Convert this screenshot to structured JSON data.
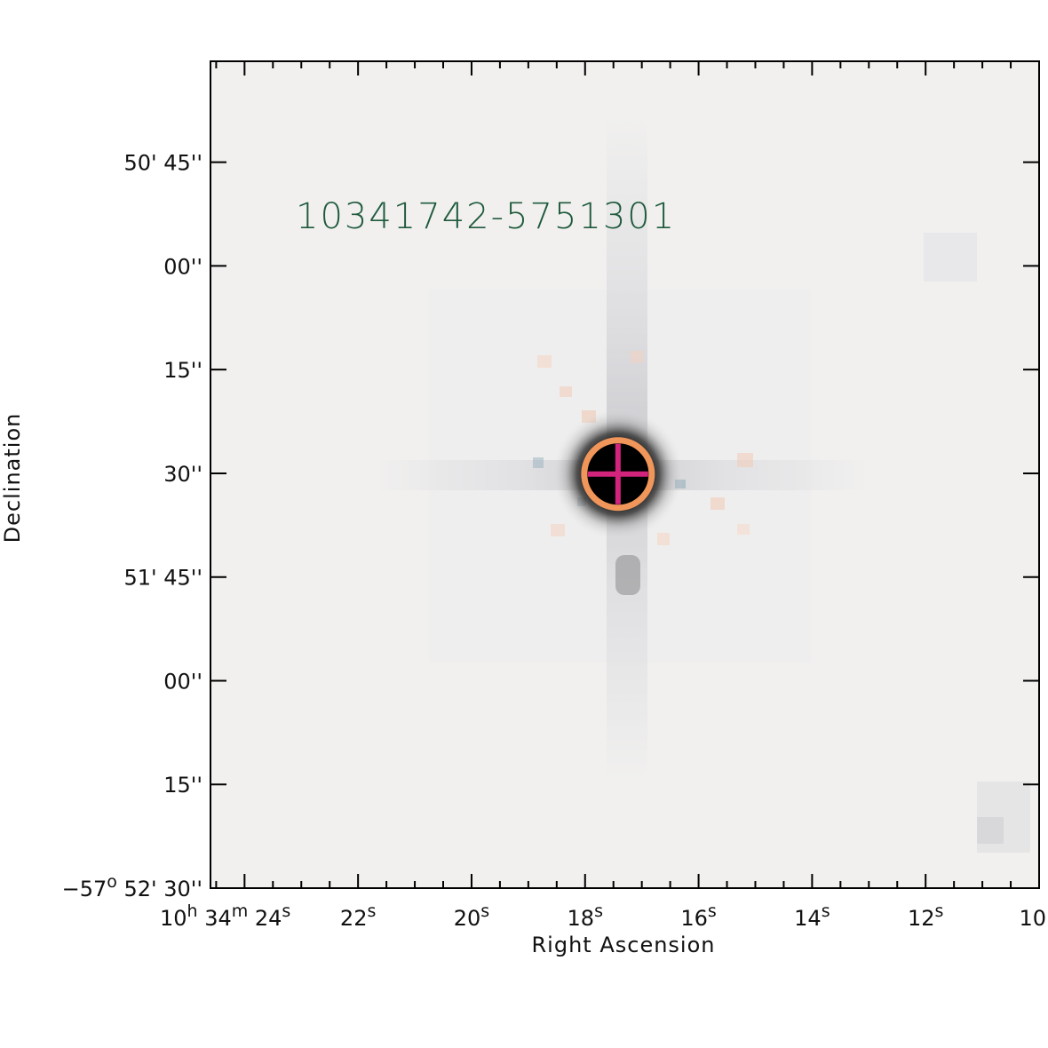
{
  "chart_data": {
    "type": "heatmap",
    "title": "10341742-5751301",
    "xlabel": "Right Ascension",
    "ylabel": "Declination",
    "x_ticks": [
      {
        "label": "10h 34m 24s",
        "parts": [
          "10",
          "h",
          " 34",
          "m",
          " 24",
          "s"
        ],
        "ra_sec": 24.0
      },
      {
        "label": "22s",
        "parts": [
          "22",
          "s"
        ],
        "ra_sec": 22.0
      },
      {
        "label": "20s",
        "parts": [
          "20",
          "s"
        ],
        "ra_sec": 20.0
      },
      {
        "label": "18s",
        "parts": [
          "18",
          "s"
        ],
        "ra_sec": 18.0
      },
      {
        "label": "16s",
        "parts": [
          "16",
          "s"
        ],
        "ra_sec": 16.0
      },
      {
        "label": "14s",
        "parts": [
          "14",
          "s"
        ],
        "ra_sec": 14.0
      },
      {
        "label": "12s",
        "parts": [
          "12",
          "s"
        ],
        "ra_sec": 12.0
      },
      {
        "label": "10",
        "parts": [
          "10"
        ],
        "ra_sec": 10.0
      }
    ],
    "y_ticks": [
      {
        "label": "50' 45''",
        "parts": [
          "50' 45''"
        ],
        "dec_arcsec": 45
      },
      {
        "label": "00''",
        "parts": [
          "00''"
        ],
        "dec_arcsec": 60
      },
      {
        "label": "15''",
        "parts": [
          "15''"
        ],
        "dec_arcsec": 75
      },
      {
        "label": "30''",
        "parts": [
          "30''"
        ],
        "dec_arcsec": 90
      },
      {
        "label": "51' 45''",
        "parts": [
          "51' 45''"
        ],
        "dec_arcsec": 105
      },
      {
        "label": "00''",
        "parts": [
          "00''"
        ],
        "dec_arcsec": 120
      },
      {
        "label": "15''",
        "parts": [
          "15''"
        ],
        "dec_arcsec": 135
      },
      {
        "label": "-57o 52' 30''",
        "parts": [
          "−57",
          "o",
          " 52' 30''"
        ],
        "dec_arcsec": 150
      }
    ],
    "xlim_ra_sec": [
      24.6,
      10.0
    ],
    "ylim_dec_arcsec": [
      30.4,
      150.0
    ],
    "source": {
      "ra_sec": 17.42,
      "dec_arcsec": 90.1
    },
    "grid": false,
    "colors": {
      "circle": "#f0965a",
      "cross": "#d2237d",
      "title": "#1e5a3c",
      "background": "#f1f0ef",
      "frame": "#000000"
    }
  }
}
